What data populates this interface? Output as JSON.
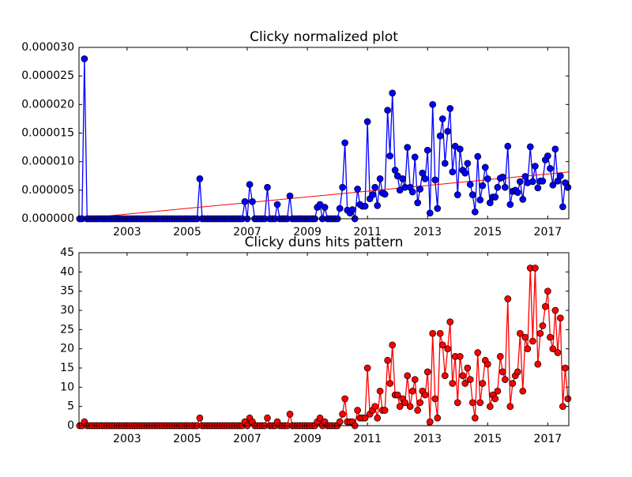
{
  "chart_data": [
    {
      "type": "line",
      "title": "Clicky normalized plot",
      "x": [
        2001.42,
        2001.5,
        2001.58,
        2001.67,
        2001.75,
        2001.83,
        2001.92,
        2002,
        2002.08,
        2002.17,
        2002.25,
        2002.33,
        2002.42,
        2002.5,
        2002.58,
        2002.67,
        2002.75,
        2002.83,
        2002.92,
        2003,
        2003.08,
        2003.17,
        2003.25,
        2003.33,
        2003.42,
        2003.5,
        2003.58,
        2003.67,
        2003.75,
        2003.83,
        2003.92,
        2004,
        2004.08,
        2004.17,
        2004.25,
        2004.33,
        2004.42,
        2004.5,
        2004.58,
        2004.67,
        2004.75,
        2004.83,
        2004.92,
        2005,
        2005.08,
        2005.17,
        2005.25,
        2005.33,
        2005.42,
        2005.5,
        2005.58,
        2005.67,
        2005.75,
        2005.83,
        2005.92,
        2006,
        2006.08,
        2006.17,
        2006.25,
        2006.33,
        2006.42,
        2006.5,
        2006.58,
        2006.67,
        2006.75,
        2006.83,
        2006.92,
        2007,
        2007.08,
        2007.17,
        2007.25,
        2007.33,
        2007.42,
        2007.5,
        2007.58,
        2007.67,
        2007.75,
        2007.83,
        2007.92,
        2008,
        2008.08,
        2008.17,
        2008.25,
        2008.33,
        2008.42,
        2008.5,
        2008.58,
        2008.67,
        2008.75,
        2008.83,
        2008.92,
        2009,
        2009.08,
        2009.17,
        2009.25,
        2009.33,
        2009.42,
        2009.5,
        2009.58,
        2009.67,
        2009.75,
        2009.83,
        2009.92,
        2010,
        2010.08,
        2010.17,
        2010.25,
        2010.33,
        2010.42,
        2010.5,
        2010.58,
        2010.67,
        2010.75,
        2010.83,
        2010.92,
        2011,
        2011.08,
        2011.17,
        2011.25,
        2011.33,
        2011.42,
        2011.5,
        2011.58,
        2011.67,
        2011.75,
        2011.83,
        2011.92,
        2012,
        2012.08,
        2012.17,
        2012.25,
        2012.33,
        2012.42,
        2012.5,
        2012.58,
        2012.67,
        2012.75,
        2012.83,
        2012.92,
        2013,
        2013.08,
        2013.17,
        2013.25,
        2013.33,
        2013.42,
        2013.5,
        2013.58,
        2013.67,
        2013.75,
        2013.83,
        2013.92,
        2014,
        2014.08,
        2014.17,
        2014.25,
        2014.33,
        2014.42,
        2014.5,
        2014.58,
        2014.67,
        2014.75,
        2014.83,
        2014.92,
        2015,
        2015.08,
        2015.17,
        2015.25,
        2015.33,
        2015.42,
        2015.5,
        2015.58,
        2015.67,
        2015.75,
        2015.83,
        2015.92,
        2016,
        2016.08,
        2016.17,
        2016.25,
        2016.33,
        2016.42,
        2016.5,
        2016.58,
        2016.67,
        2016.75,
        2016.83,
        2016.92,
        2017,
        2017.08,
        2017.17,
        2017.25,
        2017.33,
        2017.42,
        2017.5,
        2017.58,
        2017.67
      ],
      "series": [
        {
          "color": "#0000ff",
          "values": [
            0,
            0,
            2.8e-05,
            0,
            0,
            0,
            0,
            0,
            0,
            0,
            0,
            0,
            0,
            0,
            0,
            0,
            0,
            0,
            0,
            0,
            0,
            0,
            0,
            0,
            0,
            0,
            0,
            0,
            0,
            0,
            0,
            0,
            0,
            0,
            0,
            0,
            0,
            0,
            0,
            0,
            0,
            0,
            0,
            0,
            0,
            0,
            0,
            0,
            7e-06,
            0,
            0,
            0,
            0,
            0,
            0,
            0,
            0,
            0,
            0,
            0,
            0,
            0,
            0,
            0,
            0,
            0,
            3e-06,
            0,
            6e-06,
            3e-06,
            0,
            0,
            0,
            0,
            0,
            5.5e-06,
            0,
            0,
            0,
            2.5e-06,
            0,
            0,
            0,
            0,
            4e-06,
            0,
            0,
            0,
            0,
            0,
            0,
            0,
            0,
            0,
            0,
            2e-06,
            2.5e-06,
            0,
            2e-06,
            0,
            0,
            0,
            0,
            0,
            1.8e-06,
            5.5e-06,
            1.33e-05,
            1.5e-06,
            1e-06,
            1.6e-06,
            0,
            5.2e-06,
            2.5e-06,
            2.2e-06,
            2.2e-06,
            1.7e-05,
            3.5e-06,
            4.2e-06,
            5.5e-06,
            2.3e-06,
            7e-06,
            4.5e-06,
            4.3e-06,
            1.9e-05,
            1.1e-05,
            2.2e-05,
            8.5e-06,
            7.5e-06,
            5e-06,
            7e-06,
            5.5e-06,
            1.25e-05,
            5.5e-06,
            4.7e-06,
            1.08e-05,
            2.8e-06,
            5.2e-06,
            8e-06,
            7e-06,
            1.2e-05,
            1e-06,
            2e-05,
            6.8e-06,
            1.8e-06,
            1.45e-05,
            1.75e-05,
            9.7e-06,
            1.53e-05,
            1.93e-05,
            8.2e-06,
            1.27e-05,
            4.2e-06,
            1.22e-05,
            8.5e-06,
            8e-06,
            9.7e-06,
            6e-06,
            4.2e-06,
            1.2e-06,
            1.09e-05,
            3.3e-06,
            5.8e-06,
            9e-06,
            7e-06,
            2.8e-06,
            3.8e-06,
            3.8e-06,
            5.5e-06,
            7.1e-06,
            7.3e-06,
            5.5e-06,
            1.27e-05,
            2.5e-06,
            4.8e-06,
            5e-06,
            4.6e-06,
            6.5e-06,
            3.4e-06,
            7.4e-06,
            6.3e-06,
            1.26e-05,
            6.5e-06,
            9.2e-06,
            5.4e-06,
            6.6e-06,
            6.6e-06,
            1.03e-05,
            1.1e-05,
            8.8e-06,
            5.9e-06,
            1.22e-05,
            6.6e-06,
            7.5e-06,
            2.1e-06,
            6.3e-06,
            5.5e-06
          ]
        }
      ],
      "trend": {
        "color": "#ff0000",
        "x": [
          2001.4,
          2017.7
        ],
        "values": [
          0,
          8.2e-06
        ]
      },
      "xlim": [
        2001.4,
        2017.7
      ],
      "ylim": [
        0,
        3e-05
      ],
      "xticks": [
        2003,
        2005,
        2007,
        2009,
        2011,
        2013,
        2015,
        2017
      ],
      "yticks": [
        {
          "value": 0,
          "label": "0.000000"
        },
        {
          "value": 5e-06,
          "label": "0.000005"
        },
        {
          "value": 1e-05,
          "label": "0.000010"
        },
        {
          "value": 1.5e-05,
          "label": "0.000015"
        },
        {
          "value": 2e-05,
          "label": "0.000020"
        },
        {
          "value": 2.5e-05,
          "label": "0.000025"
        },
        {
          "value": 3e-05,
          "label": "0.000030"
        }
      ]
    },
    {
      "type": "line",
      "title": "Clicky duns hits pattern",
      "x": [
        2001.42,
        2001.5,
        2001.58,
        2001.67,
        2001.75,
        2001.83,
        2001.92,
        2002,
        2002.08,
        2002.17,
        2002.25,
        2002.33,
        2002.42,
        2002.5,
        2002.58,
        2002.67,
        2002.75,
        2002.83,
        2002.92,
        2003,
        2003.08,
        2003.17,
        2003.25,
        2003.33,
        2003.42,
        2003.5,
        2003.58,
        2003.67,
        2003.75,
        2003.83,
        2003.92,
        2004,
        2004.08,
        2004.17,
        2004.25,
        2004.33,
        2004.42,
        2004.5,
        2004.58,
        2004.67,
        2004.75,
        2004.83,
        2004.92,
        2005,
        2005.08,
        2005.17,
        2005.25,
        2005.33,
        2005.42,
        2005.5,
        2005.58,
        2005.67,
        2005.75,
        2005.83,
        2005.92,
        2006,
        2006.08,
        2006.17,
        2006.25,
        2006.33,
        2006.42,
        2006.5,
        2006.58,
        2006.67,
        2006.75,
        2006.83,
        2006.92,
        2007,
        2007.08,
        2007.17,
        2007.25,
        2007.33,
        2007.42,
        2007.5,
        2007.58,
        2007.67,
        2007.75,
        2007.83,
        2007.92,
        2008,
        2008.08,
        2008.17,
        2008.25,
        2008.33,
        2008.42,
        2008.5,
        2008.58,
        2008.67,
        2008.75,
        2008.83,
        2008.92,
        2009,
        2009.08,
        2009.17,
        2009.25,
        2009.33,
        2009.42,
        2009.5,
        2009.58,
        2009.67,
        2009.75,
        2009.83,
        2009.92,
        2010,
        2010.08,
        2010.17,
        2010.25,
        2010.33,
        2010.42,
        2010.5,
        2010.58,
        2010.67,
        2010.75,
        2010.83,
        2010.92,
        2011,
        2011.08,
        2011.17,
        2011.25,
        2011.33,
        2011.42,
        2011.5,
        2011.58,
        2011.67,
        2011.75,
        2011.83,
        2011.92,
        2012,
        2012.08,
        2012.17,
        2012.25,
        2012.33,
        2012.42,
        2012.5,
        2012.58,
        2012.67,
        2012.75,
        2012.83,
        2012.92,
        2013,
        2013.08,
        2013.17,
        2013.25,
        2013.33,
        2013.42,
        2013.5,
        2013.58,
        2013.67,
        2013.75,
        2013.83,
        2013.92,
        2014,
        2014.08,
        2014.17,
        2014.25,
        2014.33,
        2014.42,
        2014.5,
        2014.58,
        2014.67,
        2014.75,
        2014.83,
        2014.92,
        2015,
        2015.08,
        2015.17,
        2015.25,
        2015.33,
        2015.42,
        2015.5,
        2015.58,
        2015.67,
        2015.75,
        2015.83,
        2015.92,
        2016,
        2016.08,
        2016.17,
        2016.25,
        2016.33,
        2016.42,
        2016.5,
        2016.58,
        2016.67,
        2016.75,
        2016.83,
        2016.92,
        2017,
        2017.08,
        2017.17,
        2017.25,
        2017.33,
        2017.42,
        2017.5,
        2017.58,
        2017.67
      ],
      "series": [
        {
          "color": "#ff0000",
          "values": [
            0,
            0,
            1,
            0,
            0,
            0,
            0,
            0,
            0,
            0,
            0,
            0,
            0,
            0,
            0,
            0,
            0,
            0,
            0,
            0,
            0,
            0,
            0,
            0,
            0,
            0,
            0,
            0,
            0,
            0,
            0,
            0,
            0,
            0,
            0,
            0,
            0,
            0,
            0,
            0,
            0,
            0,
            0,
            0,
            0,
            0,
            0,
            0,
            2,
            0,
            0,
            0,
            0,
            0,
            0,
            0,
            0,
            0,
            0,
            0,
            0,
            0,
            0,
            0,
            0,
            0,
            1,
            0,
            2,
            1,
            0,
            0,
            0,
            0,
            0,
            2,
            0,
            0,
            0,
            1,
            0,
            0,
            0,
            0,
            3,
            0,
            0,
            0,
            0,
            0,
            0,
            0,
            0,
            0,
            0,
            1,
            2,
            0,
            1,
            0,
            0,
            0,
            0,
            0,
            1,
            3,
            7,
            1,
            1,
            1,
            0,
            4,
            2,
            2,
            2,
            15,
            3,
            4,
            5,
            2,
            9,
            4,
            4,
            17,
            11,
            21,
            8,
            8,
            5,
            7,
            6,
            13,
            5,
            9,
            12,
            4,
            6,
            9,
            8,
            14,
            1,
            24,
            7,
            2,
            24,
            21,
            13,
            20,
            27,
            11,
            18,
            6,
            18,
            13,
            11,
            15,
            12,
            6,
            2,
            19,
            6,
            11,
            17,
            16,
            5,
            8,
            7,
            9,
            18,
            14,
            12,
            33,
            5,
            11,
            13,
            14,
            24,
            9,
            23,
            20,
            41,
            22,
            41,
            16,
            24,
            26,
            31,
            35,
            23,
            20,
            30,
            19,
            28,
            5,
            15,
            7
          ]
        }
      ],
      "xlim": [
        2001.4,
        2017.7
      ],
      "ylim": [
        0,
        45
      ],
      "xticks": [
        2003,
        2005,
        2007,
        2009,
        2011,
        2013,
        2015,
        2017
      ],
      "yticks": [
        0,
        5,
        10,
        15,
        20,
        25,
        30,
        35,
        40,
        45
      ]
    }
  ]
}
